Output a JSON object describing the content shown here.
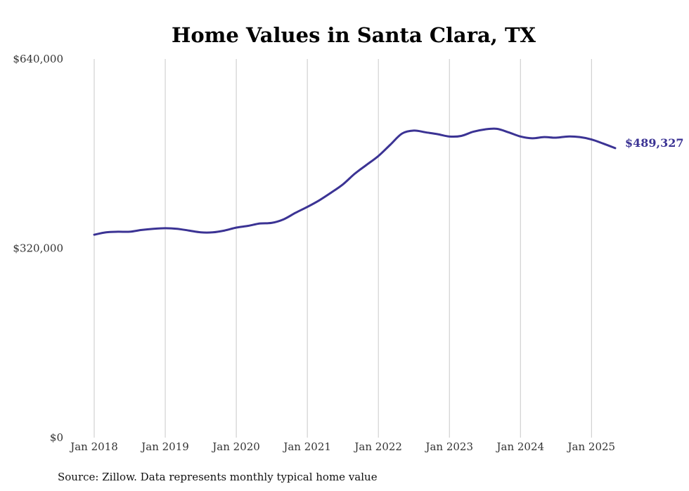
{
  "chart_data": {
    "type": "line",
    "title": "Home Values in Santa Clara, TX",
    "source_note": "Source: Zillow. Data represents monthly typical home value",
    "end_label": "$489,327",
    "colors": {
      "line": "#3b3394",
      "grid": "#c8c8c8"
    },
    "grid": true,
    "ylim": [
      0,
      640000
    ],
    "xlim": [
      "2018-01",
      "2025-05"
    ],
    "yticks": [
      {
        "value": 0,
        "label": "$0"
      },
      {
        "value": 320000,
        "label": "$320,000"
      },
      {
        "value": 640000,
        "label": "$640,000"
      }
    ],
    "xticks": [
      {
        "value": "2018-01",
        "label": "Jan 2018"
      },
      {
        "value": "2019-01",
        "label": "Jan 2019"
      },
      {
        "value": "2020-01",
        "label": "Jan 2020"
      },
      {
        "value": "2021-01",
        "label": "Jan 2021"
      },
      {
        "value": "2022-01",
        "label": "Jan 2022"
      },
      {
        "value": "2023-01",
        "label": "Jan 2023"
      },
      {
        "value": "2024-01",
        "label": "Jan 2024"
      },
      {
        "value": "2025-01",
        "label": "Jan 2025"
      }
    ],
    "series": [
      {
        "x": [
          "2018-01",
          "2018-03",
          "2018-05",
          "2018-07",
          "2018-09",
          "2018-11",
          "2019-01",
          "2019-03",
          "2019-05",
          "2019-07",
          "2019-09",
          "2019-11",
          "2020-01",
          "2020-03",
          "2020-05",
          "2020-07",
          "2020-09",
          "2020-11",
          "2021-01",
          "2021-03",
          "2021-05",
          "2021-07",
          "2021-09",
          "2021-11",
          "2022-01",
          "2022-03",
          "2022-05",
          "2022-07",
          "2022-09",
          "2022-11",
          "2023-01",
          "2023-03",
          "2023-05",
          "2023-07",
          "2023-09",
          "2023-11",
          "2024-01",
          "2024-03",
          "2024-05",
          "2024-07",
          "2024-09",
          "2024-11",
          "2025-01",
          "2025-03",
          "2025-05"
        ],
        "values": [
          343000,
          347000,
          348000,
          348000,
          351000,
          353000,
          354000,
          353000,
          350000,
          347000,
          347000,
          350000,
          355000,
          358000,
          362000,
          363000,
          369000,
          380000,
          390000,
          401000,
          414000,
          428000,
          446000,
          461000,
          476000,
          495000,
          514000,
          519000,
          516000,
          513000,
          509000,
          510000,
          517000,
          521000,
          522000,
          516000,
          509000,
          506000,
          508000,
          507000,
          509000,
          508000,
          504000,
          497000,
          489327
        ]
      }
    ]
  }
}
